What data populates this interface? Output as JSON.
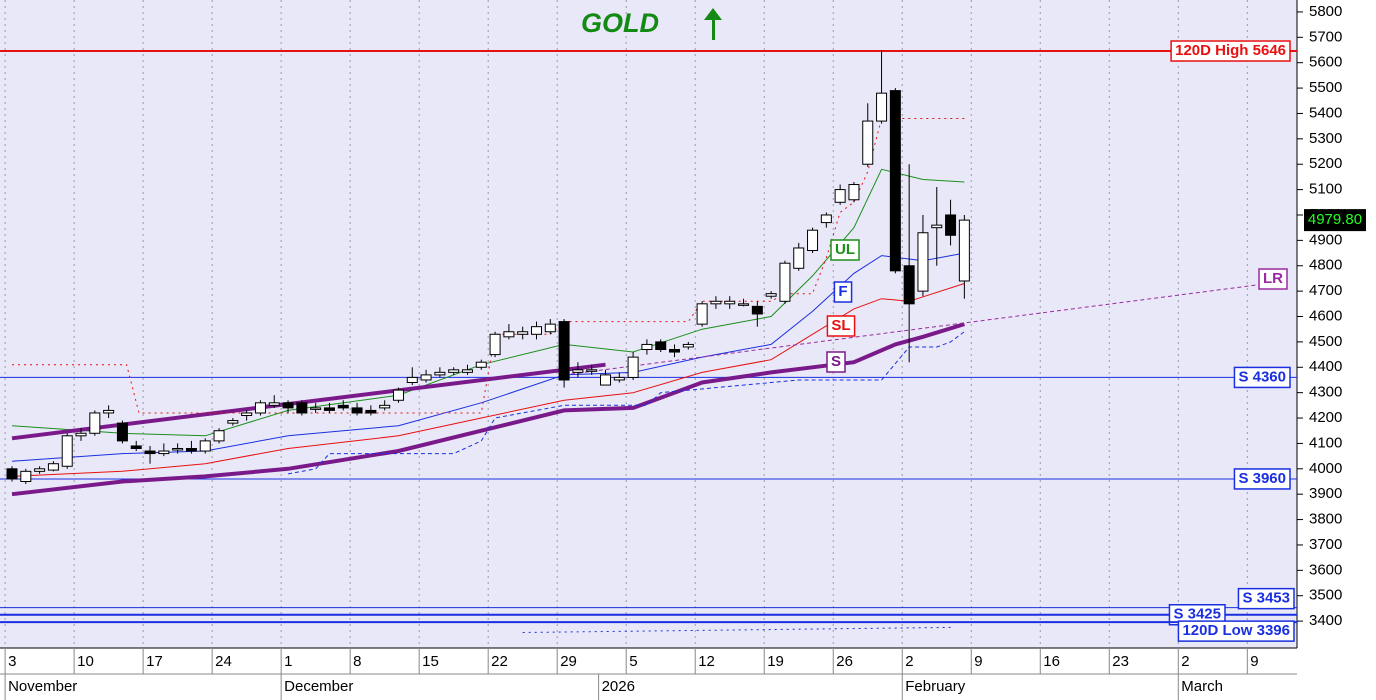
{
  "chart_data": {
    "type": "candlestick",
    "title": "GOLD",
    "x": [
      0,
      1,
      2,
      3,
      4,
      5,
      6,
      7,
      8,
      9,
      10,
      11,
      12,
      13,
      14,
      15,
      16,
      17,
      18,
      19,
      20,
      21,
      22,
      23,
      24,
      25,
      26,
      27,
      28,
      29,
      30,
      31,
      32,
      33,
      34,
      35,
      36,
      37,
      38,
      39,
      40,
      41,
      42,
      43,
      44,
      45,
      46,
      47,
      48,
      49,
      50,
      51,
      52,
      53,
      54,
      55,
      56,
      57,
      58,
      59,
      60,
      61,
      62,
      63,
      64,
      65,
      66,
      67,
      68,
      69
    ],
    "open": [
      4000,
      3950,
      3990,
      3995,
      4010,
      4130,
      4140,
      4220,
      4180,
      4090,
      4070,
      4060,
      4075,
      4080,
      4070,
      4110,
      4180,
      4210,
      4220,
      4250,
      4260,
      4260,
      4240,
      4240,
      4250,
      4240,
      4230,
      4240,
      4270,
      4340,
      4350,
      4370,
      4380,
      4380,
      4400,
      4450,
      4520,
      4530,
      4530,
      4540,
      4580,
      4380,
      4390,
      4330,
      4350,
      4360,
      4470,
      4500,
      4470,
      4480,
      4570,
      4650,
      4650,
      4650,
      4640,
      4680,
      4660,
      4790,
      4860,
      4970,
      5050,
      5060,
      5200,
      5370,
      5490,
      4800,
      4700,
      4950,
      5000,
      4740
    ],
    "high": [
      4010,
      4000,
      4010,
      4030,
      4140,
      4160,
      4230,
      4250,
      4190,
      4110,
      4090,
      4100,
      4100,
      4110,
      4120,
      4160,
      4200,
      4230,
      4270,
      4290,
      4270,
      4270,
      4260,
      4260,
      4270,
      4260,
      4250,
      4270,
      4320,
      4400,
      4390,
      4400,
      4400,
      4410,
      4430,
      4540,
      4570,
      4560,
      4580,
      4590,
      4590,
      4420,
      4410,
      4390,
      4380,
      4460,
      4510,
      4510,
      4490,
      4500,
      4660,
      4680,
      4680,
      4670,
      4660,
      4700,
      4820,
      4890,
      4950,
      5010,
      5120,
      5130,
      5440,
      5650,
      5500,
      5200,
      5000,
      5110,
      5060,
      5000
    ],
    "low": [
      3950,
      3940,
      3980,
      3990,
      4000,
      4110,
      4130,
      4200,
      4100,
      4070,
      4020,
      4050,
      4060,
      4060,
      4060,
      4100,
      4170,
      4190,
      4210,
      4240,
      4220,
      4210,
      4220,
      4220,
      4230,
      4210,
      4210,
      4230,
      4260,
      4330,
      4340,
      4360,
      4370,
      4370,
      4390,
      4440,
      4510,
      4510,
      4510,
      4530,
      4320,
      4360,
      4370,
      4330,
      4340,
      4350,
      4450,
      4460,
      4440,
      4470,
      4560,
      4630,
      4630,
      4640,
      4560,
      4670,
      4650,
      4780,
      4850,
      4950,
      5040,
      5050,
      5190,
      5360,
      4770,
      4420,
      4680,
      4800,
      4880,
      4670
    ],
    "close": [
      3960,
      3990,
      4000,
      4020,
      4130,
      4140,
      4220,
      4230,
      4110,
      4080,
      4060,
      4070,
      4080,
      4070,
      4110,
      4150,
      4190,
      4220,
      4260,
      4260,
      4240,
      4220,
      4240,
      4230,
      4240,
      4220,
      4220,
      4250,
      4310,
      4360,
      4370,
      4380,
      4390,
      4390,
      4420,
      4530,
      4540,
      4540,
      4560,
      4570,
      4350,
      4390,
      4390,
      4370,
      4360,
      4440,
      4490,
      4470,
      4460,
      4490,
      4650,
      4660,
      4660,
      4650,
      4610,
      4690,
      4810,
      4870,
      4940,
      5000,
      5100,
      5120,
      5370,
      5480,
      4780,
      4650,
      4930,
      4960,
      4920,
      4979.8
    ],
    "up_color": "#ffffff",
    "down_color": "#000000",
    "last_label": {
      "value": 4979.8,
      "label": "4979.80"
    },
    "lines": [
      {
        "name": "UL",
        "color": "#1a8f1a",
        "dash": "solid",
        "width": 1,
        "x": [
          0,
          8,
          14,
          20,
          28,
          34,
          40,
          45,
          50,
          55,
          58,
          61,
          63,
          66,
          69
        ],
        "values": [
          4170,
          4140,
          4130,
          4230,
          4290,
          4410,
          4490,
          4460,
          4550,
          4600,
          4760,
          4950,
          5180,
          5140,
          5130
        ]
      },
      {
        "name": "F",
        "color": "#1a2fe0",
        "dash": "solid",
        "width": 1,
        "x": [
          0,
          8,
          14,
          20,
          28,
          34,
          40,
          45,
          50,
          55,
          58,
          61,
          63,
          66,
          69
        ],
        "values": [
          4030,
          4060,
          4070,
          4130,
          4170,
          4260,
          4370,
          4380,
          4440,
          4490,
          4620,
          4770,
          4840,
          4820,
          4850
        ]
      },
      {
        "name": "SL",
        "color": "#e81010",
        "dash": "solid",
        "width": 1,
        "x": [
          0,
          8,
          14,
          20,
          28,
          34,
          40,
          45,
          50,
          55,
          58,
          61,
          63,
          65,
          69
        ],
        "values": [
          3970,
          3990,
          4020,
          4080,
          4130,
          4200,
          4270,
          4300,
          4380,
          4430,
          4530,
          4630,
          4670,
          4660,
          4730
        ]
      },
      {
        "name": "S",
        "color": "#7a1a8a",
        "dash": "solid",
        "width": 4,
        "x": [
          0,
          8,
          14,
          20,
          28,
          34,
          40,
          45,
          50,
          55,
          58,
          61,
          64,
          66,
          69
        ],
        "values": [
          3900,
          3950,
          3970,
          4000,
          4070,
          4150,
          4230,
          4240,
          4340,
          4380,
          4400,
          4420,
          4490,
          4520,
          4570
        ]
      },
      {
        "color": "#7a1a8a",
        "dash": "solid",
        "width": 4,
        "x": [
          0,
          43
        ],
        "values": [
          4120,
          4410
        ]
      },
      {
        "name": "LR",
        "color": "#9a2aa0",
        "dash": "dashed",
        "width": 1,
        "x": [
          40,
          91
        ],
        "values": [
          4370,
          4730
        ]
      },
      {
        "color": "#e81010",
        "dash": "dotted",
        "width": 1,
        "x": [
          0,
          8.3,
          9.2,
          34,
          35,
          39,
          40,
          49,
          50,
          55,
          56,
          58,
          59,
          60,
          61,
          62,
          63,
          69
        ],
        "values": [
          4410,
          4410,
          4220,
          4220,
          4530,
          4530,
          4580,
          4580,
          4660,
          4660,
          4690,
          4690,
          4830,
          5010,
          5050,
          5170,
          5380,
          5380
        ]
      },
      {
        "color": "#1a2fe0",
        "dash": "dashed",
        "width": 1,
        "x": [
          20,
          22,
          23,
          32,
          34,
          35,
          40,
          46,
          47,
          57,
          63,
          65,
          67,
          68,
          69
        ],
        "values": [
          3980,
          4000,
          4060,
          4060,
          4110,
          4200,
          4250,
          4250,
          4300,
          4350,
          4350,
          4480,
          4480,
          4500,
          4540
        ]
      },
      {
        "color": "#1a2fe0",
        "dash": "dotted",
        "width": 1,
        "x": [
          37,
          68
        ],
        "values": [
          3355,
          3375
        ]
      }
    ],
    "levels": [
      {
        "value": 5646,
        "label": "120D High 5646",
        "color": "#e81010",
        "width": 2
      },
      {
        "value": 4360,
        "label": "S 4360",
        "color": "#1a2fe0",
        "width": 1
      },
      {
        "value": 3960,
        "label": "S 3960",
        "color": "#1a2fe0",
        "width": 1
      },
      {
        "value": 3453,
        "label": "S 3453",
        "color": "#1a2fe0",
        "width": 1
      },
      {
        "value": 3425,
        "label": "S 3425",
        "color": "#1a2fe0",
        "width": 2
      },
      {
        "value": 3396,
        "label": "120D Low 3396",
        "color": "#1a2fe0",
        "width": 2
      }
    ],
    "xlim": [
      -0.87,
      93.1
    ],
    "ylim": [
      3294,
      5847
    ],
    "xticks": [
      {
        "value": 0,
        "label": "3"
      },
      {
        "value": 5,
        "label": "10"
      },
      {
        "value": 10,
        "label": "17"
      },
      {
        "value": 15,
        "label": "24"
      },
      {
        "value": 20,
        "label": "1"
      },
      {
        "value": 25,
        "label": "8"
      },
      {
        "value": 30,
        "label": "15"
      },
      {
        "value": 35,
        "label": "22"
      },
      {
        "value": 40,
        "label": "29"
      },
      {
        "value": 45,
        "label": "5"
      },
      {
        "value": 50,
        "label": "12"
      },
      {
        "value": 55,
        "label": "19"
      },
      {
        "value": 60,
        "label": "26"
      },
      {
        "value": 65,
        "label": "2"
      },
      {
        "value": 70,
        "label": "9"
      },
      {
        "value": 75,
        "label": "16"
      },
      {
        "value": 80,
        "label": "23"
      },
      {
        "value": 85,
        "label": "2"
      },
      {
        "value": 90,
        "label": "9"
      }
    ],
    "months": [
      {
        "value": 0,
        "label": "November"
      },
      {
        "value": 20,
        "label": "December"
      },
      {
        "value": 43,
        "label": "2026"
      },
      {
        "value": 65,
        "label": "February"
      },
      {
        "value": 85,
        "label": "March"
      }
    ],
    "yticks": [
      3400,
      3500,
      3600,
      3700,
      3800,
      3900,
      4000,
      4100,
      4200,
      4300,
      4400,
      4500,
      4600,
      4700,
      4800,
      4900,
      5000,
      5100,
      5200,
      5300,
      5400,
      5500,
      5600,
      5700,
      5800
    ],
    "grid": true
  }
}
